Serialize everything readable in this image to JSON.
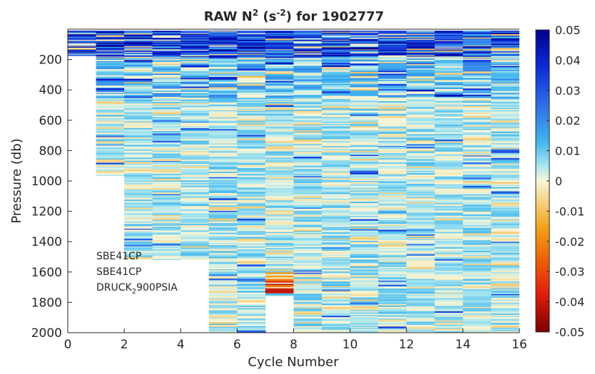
{
  "chart_data": {
    "type": "heatmap",
    "title_main": "RAW N",
    "title_sup1": "2",
    "title_mid": " (s",
    "title_sup2": "-2",
    "title_end": ") for 1902777",
    "xlabel": "Cycle Number",
    "ylabel": "Pressure (db)",
    "xlim": [
      0,
      16
    ],
    "ylim": [
      2000,
      0
    ],
    "y_reversed": true,
    "x_ticks": [
      "0",
      "2",
      "4",
      "6",
      "8",
      "10",
      "12",
      "14",
      "16"
    ],
    "y_ticks": [
      "200",
      "400",
      "600",
      "800",
      "1000",
      "1200",
      "1400",
      "1600",
      "1800",
      "2000"
    ],
    "colorbar": {
      "lim": [
        -0.05,
        0.05
      ],
      "ticks": [
        "0.05",
        "0.04",
        "0.03",
        "0.02",
        "0.01",
        "0",
        "-0.01",
        "-0.02",
        "-0.03",
        "-0.04",
        "-0.05"
      ]
    },
    "cycles": [
      {
        "x0": 0,
        "x1": 1,
        "p_top": 10,
        "p_bottom": 175
      },
      {
        "x0": 1,
        "x1": 2,
        "p_top": 10,
        "p_bottom": 965
      },
      {
        "x0": 2,
        "x1": 3,
        "p_top": 10,
        "p_bottom": 1520
      },
      {
        "x0": 3,
        "x1": 4,
        "p_top": 10,
        "p_bottom": 1520
      },
      {
        "x0": 4,
        "x1": 5,
        "p_top": 10,
        "p_bottom": 1520
      },
      {
        "x0": 5,
        "x1": 6,
        "p_top": 10,
        "p_bottom": 2000
      },
      {
        "x0": 6,
        "x1": 7,
        "p_top": 10,
        "p_bottom": 2000
      },
      {
        "x0": 7,
        "x1": 8,
        "p_top": 10,
        "p_bottom": 1760
      },
      {
        "x0": 8,
        "x1": 9,
        "p_top": 10,
        "p_bottom": 2000
      },
      {
        "x0": 9,
        "x1": 10,
        "p_top": 10,
        "p_bottom": 2000
      },
      {
        "x0": 10,
        "x1": 11,
        "p_top": 10,
        "p_bottom": 2000
      },
      {
        "x0": 11,
        "x1": 12,
        "p_top": 10,
        "p_bottom": 2000
      },
      {
        "x0": 12,
        "x1": 13,
        "p_top": 10,
        "p_bottom": 2000
      },
      {
        "x0": 13,
        "x1": 14,
        "p_top": 10,
        "p_bottom": 2000
      },
      {
        "x0": 14,
        "x1": 15,
        "p_top": 10,
        "p_bottom": 2000
      },
      {
        "x0": 15,
        "x1": 16,
        "p_top": 10,
        "p_bottom": 2000
      }
    ],
    "annotations": {
      "line1": "SBE41CP",
      "line2": "SBE41CP",
      "line3_a": "DRUCK",
      "line3_sub": "2",
      "line3_b": "900PSIA"
    }
  }
}
